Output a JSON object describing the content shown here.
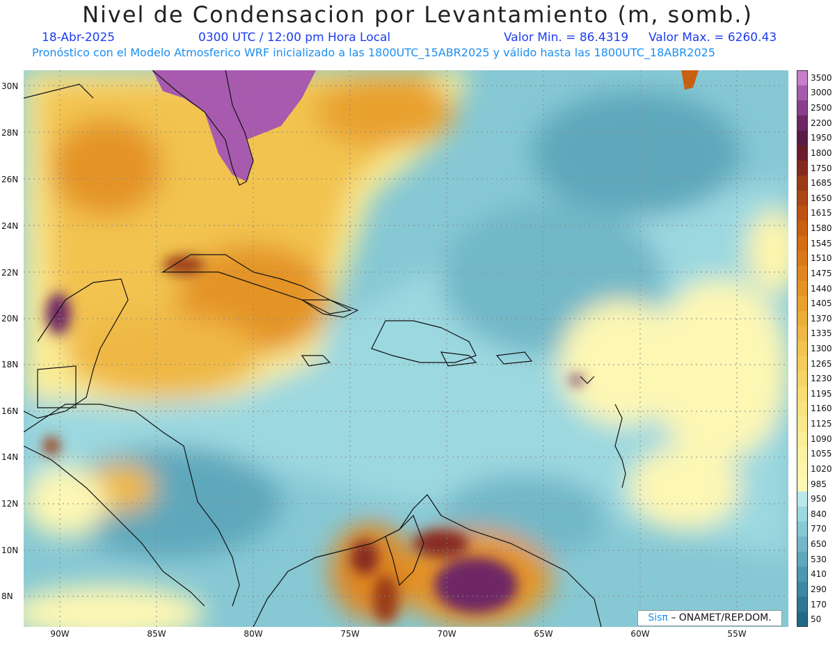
{
  "header": {
    "title": "Nivel de Condensacion por Levantamiento (m, somb.)",
    "date": "18-Abr-2025",
    "time": "0300 UTC / 12:00 pm Hora Local",
    "min_value": "Valor Min. = 86.4319",
    "max_value": "Valor Max. = 6260.43",
    "model_line": "Pronóstico con el Modelo Atmosferico WRF inicializado a las 1800UTC_15ABR2025 y válido hasta las  1800UTC_18ABR2025"
  },
  "axes": {
    "lat_labels": [
      "30N",
      "28N",
      "26N",
      "24N",
      "22N",
      "20N",
      "18N",
      "16N",
      "14N",
      "12N",
      "10N",
      "8N"
    ],
    "lon_labels": [
      "90W",
      "85W",
      "80W",
      "75W",
      "70W",
      "65W",
      "60W",
      "55W"
    ]
  },
  "colorbar": {
    "levels": [
      "3500",
      "3000",
      "2500",
      "2200",
      "1950",
      "1800",
      "1750",
      "1685",
      "1650",
      "1615",
      "1580",
      "1545",
      "1510",
      "1475",
      "1440",
      "1405",
      "1370",
      "1335",
      "1300",
      "1265",
      "1230",
      "1195",
      "1160",
      "1125",
      "1090",
      "1055",
      "1020",
      "985",
      "950",
      "840",
      "770",
      "650",
      "530",
      "410",
      "290",
      "170",
      "50"
    ],
    "colors": [
      "#c77fc9",
      "#a85aae",
      "#8c3e8c",
      "#6e2765",
      "#5a1a47",
      "#6a1c2c",
      "#862a20",
      "#9a3a18",
      "#ad4716",
      "#bc5314",
      "#c86012",
      "#d26d14",
      "#d97a1a",
      "#df8720",
      "#e49426",
      "#e8a12e",
      "#ecad38",
      "#efb844",
      "#f2c350",
      "#f4cc5c",
      "#f6d568",
      "#f8dd74",
      "#f9e380",
      "#fae98c",
      "#fbee98",
      "#fcf2a2",
      "#fdf5ac",
      "#fdf7b4",
      "#b9e8ea",
      "#9cd8e0",
      "#86c8d4",
      "#72b8c8",
      "#5ea8bc",
      "#4c98b0",
      "#3c88a2",
      "#2e7894",
      "#216a86"
    ]
  },
  "credit": {
    "brand": "Sisπ",
    "text": "– ONAMET/REP.DOM."
  }
}
